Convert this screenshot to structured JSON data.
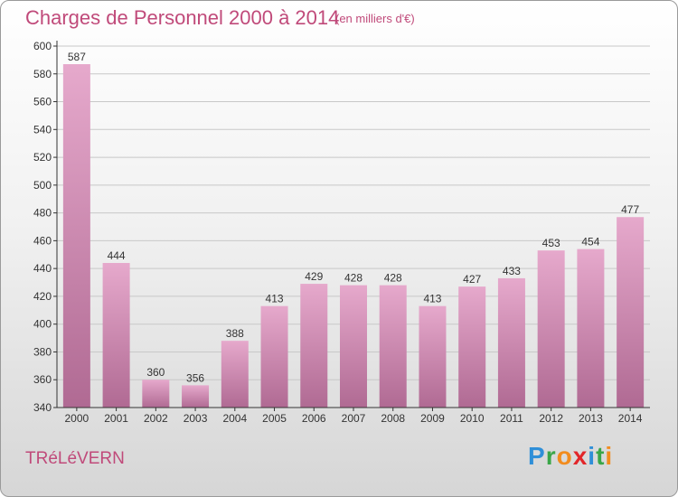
{
  "header": {
    "title": "Charges de Personnel 2000 à 2014",
    "subtitle": "(en milliers d'€)"
  },
  "footer": {
    "commune": "TRéLéVERN",
    "logo": {
      "letters": [
        "P",
        "r",
        "o",
        "x",
        "i",
        "t",
        "i"
      ],
      "colors": [
        "#2f8fd8",
        "#3aa648",
        "#f28c1e",
        "#e2262a",
        "#2f8fd8",
        "#3aa648",
        "#f28c1e"
      ]
    }
  },
  "colors": {
    "bar_top": "#e6a9cc",
    "bar_bottom": "#b06a93",
    "axis": "#333333",
    "grid": "#c8c8c8",
    "title": "#c04a7a"
  },
  "chart_data": {
    "type": "bar",
    "categories": [
      "2000",
      "2001",
      "2002",
      "2003",
      "2004",
      "2005",
      "2006",
      "2007",
      "2008",
      "2009",
      "2010",
      "2011",
      "2012",
      "2013",
      "2014"
    ],
    "values": [
      587,
      444,
      360,
      356,
      388,
      413,
      429,
      428,
      428,
      413,
      427,
      433,
      453,
      454,
      477
    ],
    "ylim": [
      340,
      600
    ],
    "yticks": [
      340,
      360,
      380,
      400,
      420,
      440,
      460,
      480,
      500,
      520,
      540,
      560,
      580,
      600
    ],
    "grid": true,
    "legend": "none"
  }
}
